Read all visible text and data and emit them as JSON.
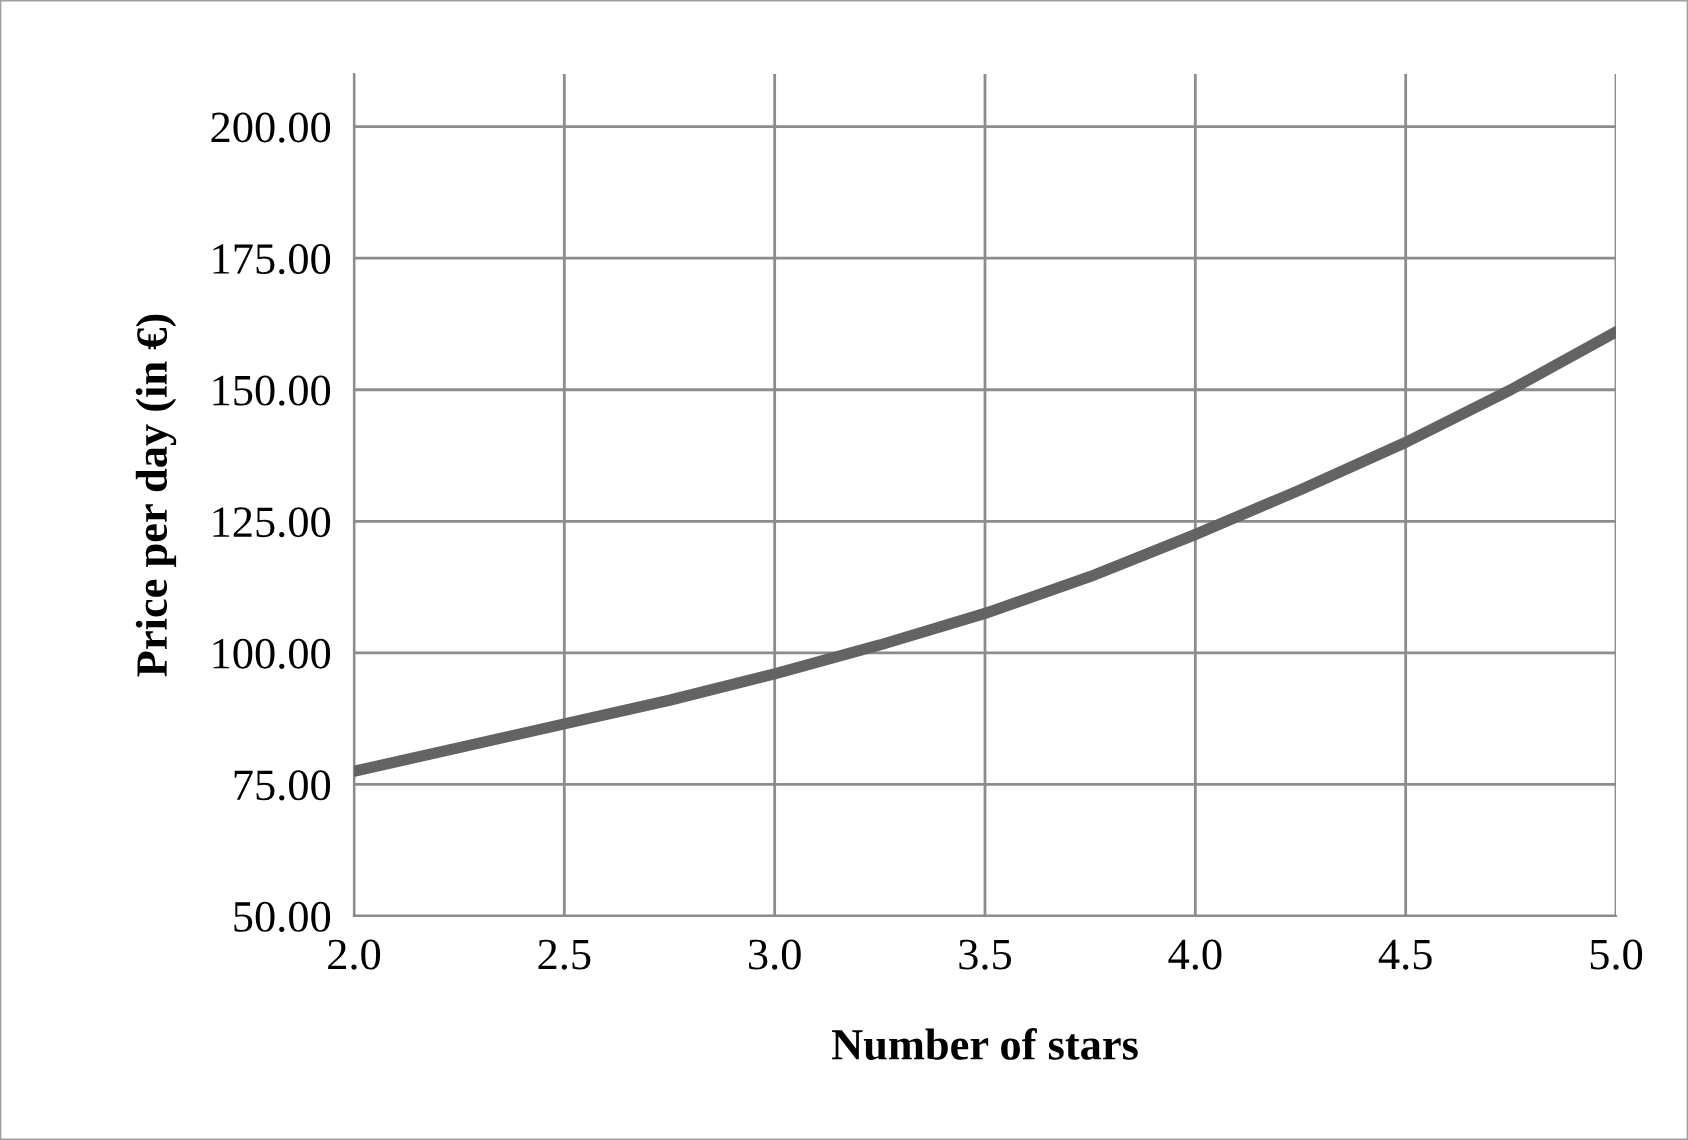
{
  "chart_data": {
    "type": "line",
    "xlabel": "Number of stars",
    "ylabel": "Price per day (in €)",
    "x": [
      2.0,
      2.25,
      2.5,
      2.75,
      3.0,
      3.25,
      3.5,
      3.75,
      4.0,
      4.25,
      4.5,
      4.75,
      5.0
    ],
    "series": [
      {
        "color": "#636363",
        "values": [
          77.5,
          82,
          86.5,
          91,
          96,
          101.5,
          107.5,
          114.5,
          122.5,
          131,
          140,
          150,
          161
        ]
      }
    ],
    "xlim": [
      2.0,
      5.0
    ],
    "xticks": [
      {
        "value": 2,
        "label": "2.0"
      },
      {
        "value": 2.5,
        "label": "2.5"
      },
      {
        "value": 3,
        "label": "3.0"
      },
      {
        "value": 3.5,
        "label": "3.5"
      },
      {
        "value": 4,
        "label": "4.0"
      },
      {
        "value": 4.5,
        "label": "4.5"
      },
      {
        "value": 5,
        "label": "5.0"
      }
    ],
    "ylim": [
      50,
      210
    ],
    "yticks": [
      {
        "value": 50,
        "label": "50.00"
      },
      {
        "value": 75,
        "label": "75.00"
      },
      {
        "value": 100,
        "label": "100.00"
      },
      {
        "value": 125,
        "label": "125.00"
      },
      {
        "value": 150,
        "label": "150.00"
      },
      {
        "value": 175,
        "label": "175.00"
      },
      {
        "value": 200,
        "label": "200.00"
      }
    ],
    "grid": true,
    "marker": "none",
    "line_style": "solid"
  }
}
